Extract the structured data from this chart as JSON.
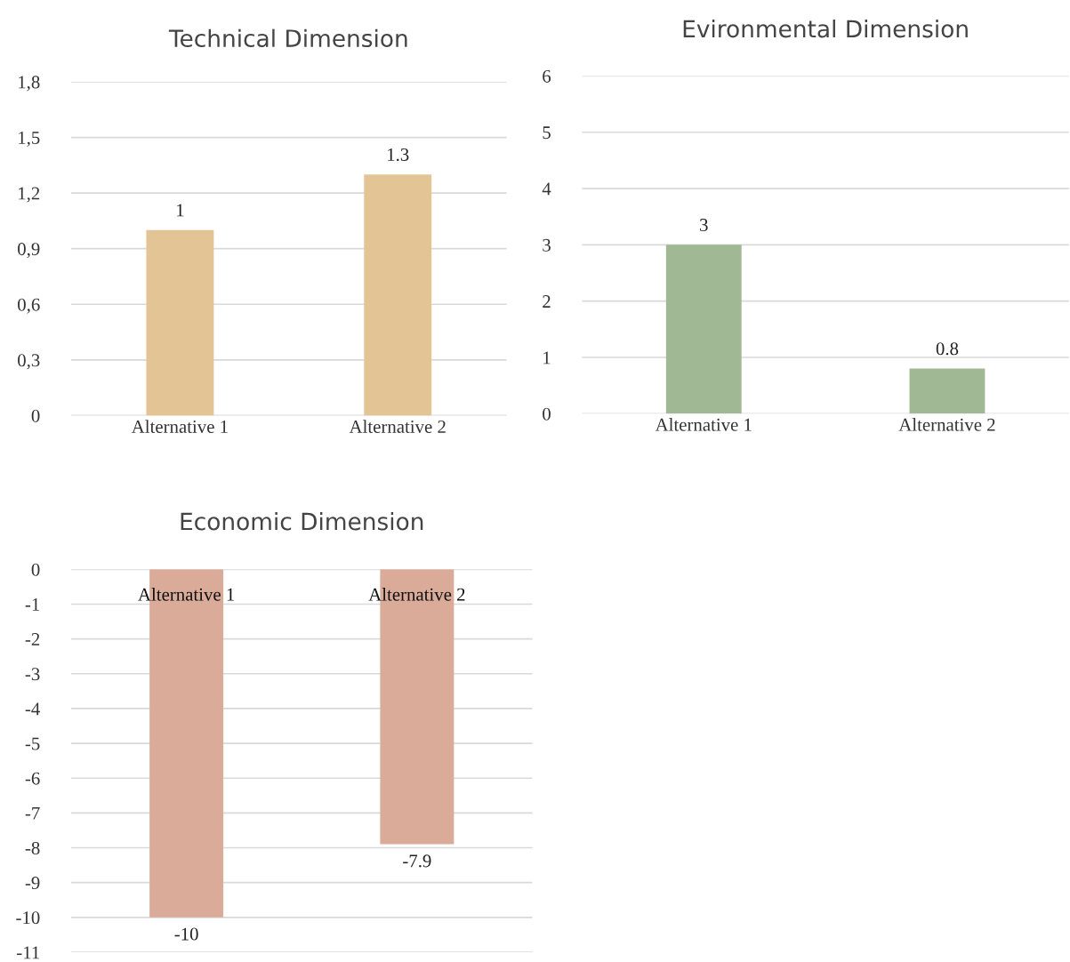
{
  "chart_data": [
    {
      "type": "bar",
      "title": "Technical Dimension",
      "categories": [
        "Alternative 1",
        "Alternative 2"
      ],
      "values": [
        1,
        1.3
      ],
      "color": "#e3c494",
      "ylim": [
        0,
        1.8
      ],
      "yticks": [
        0,
        {
          "value": 0.3,
          "label": "0,3"
        },
        {
          "value": 0.6,
          "label": "0,6"
        },
        {
          "value": 0.9,
          "label": "0,9"
        },
        {
          "value": 1.2,
          "label": "1,2"
        },
        {
          "value": 1.5,
          "label": "1,5"
        },
        {
          "value": 1.8,
          "label": "1,8"
        }
      ],
      "grid": "y",
      "data_labels": true
    },
    {
      "type": "bar",
      "title": "Evironmental Dimension",
      "categories": [
        "Alternative 1",
        "Alternative 2"
      ],
      "values": [
        3,
        0.8
      ],
      "color": "#a0b894",
      "ylim": [
        0,
        6
      ],
      "yticks": [
        0,
        1,
        2,
        3,
        4,
        5,
        6
      ],
      "grid": "y",
      "data_labels": true
    },
    {
      "type": "bar",
      "title": "Economic Dimension",
      "categories": [
        "Alternative 1",
        "Alternative 2"
      ],
      "values": [
        -10,
        -7.9
      ],
      "color": "#d9ab98",
      "ylim": [
        -11,
        0
      ],
      "yticks": [
        0,
        -1,
        -2,
        -3,
        -4,
        -5,
        -6,
        -7,
        -8,
        -9,
        -10,
        -11
      ],
      "grid": "y",
      "data_labels": true
    }
  ]
}
